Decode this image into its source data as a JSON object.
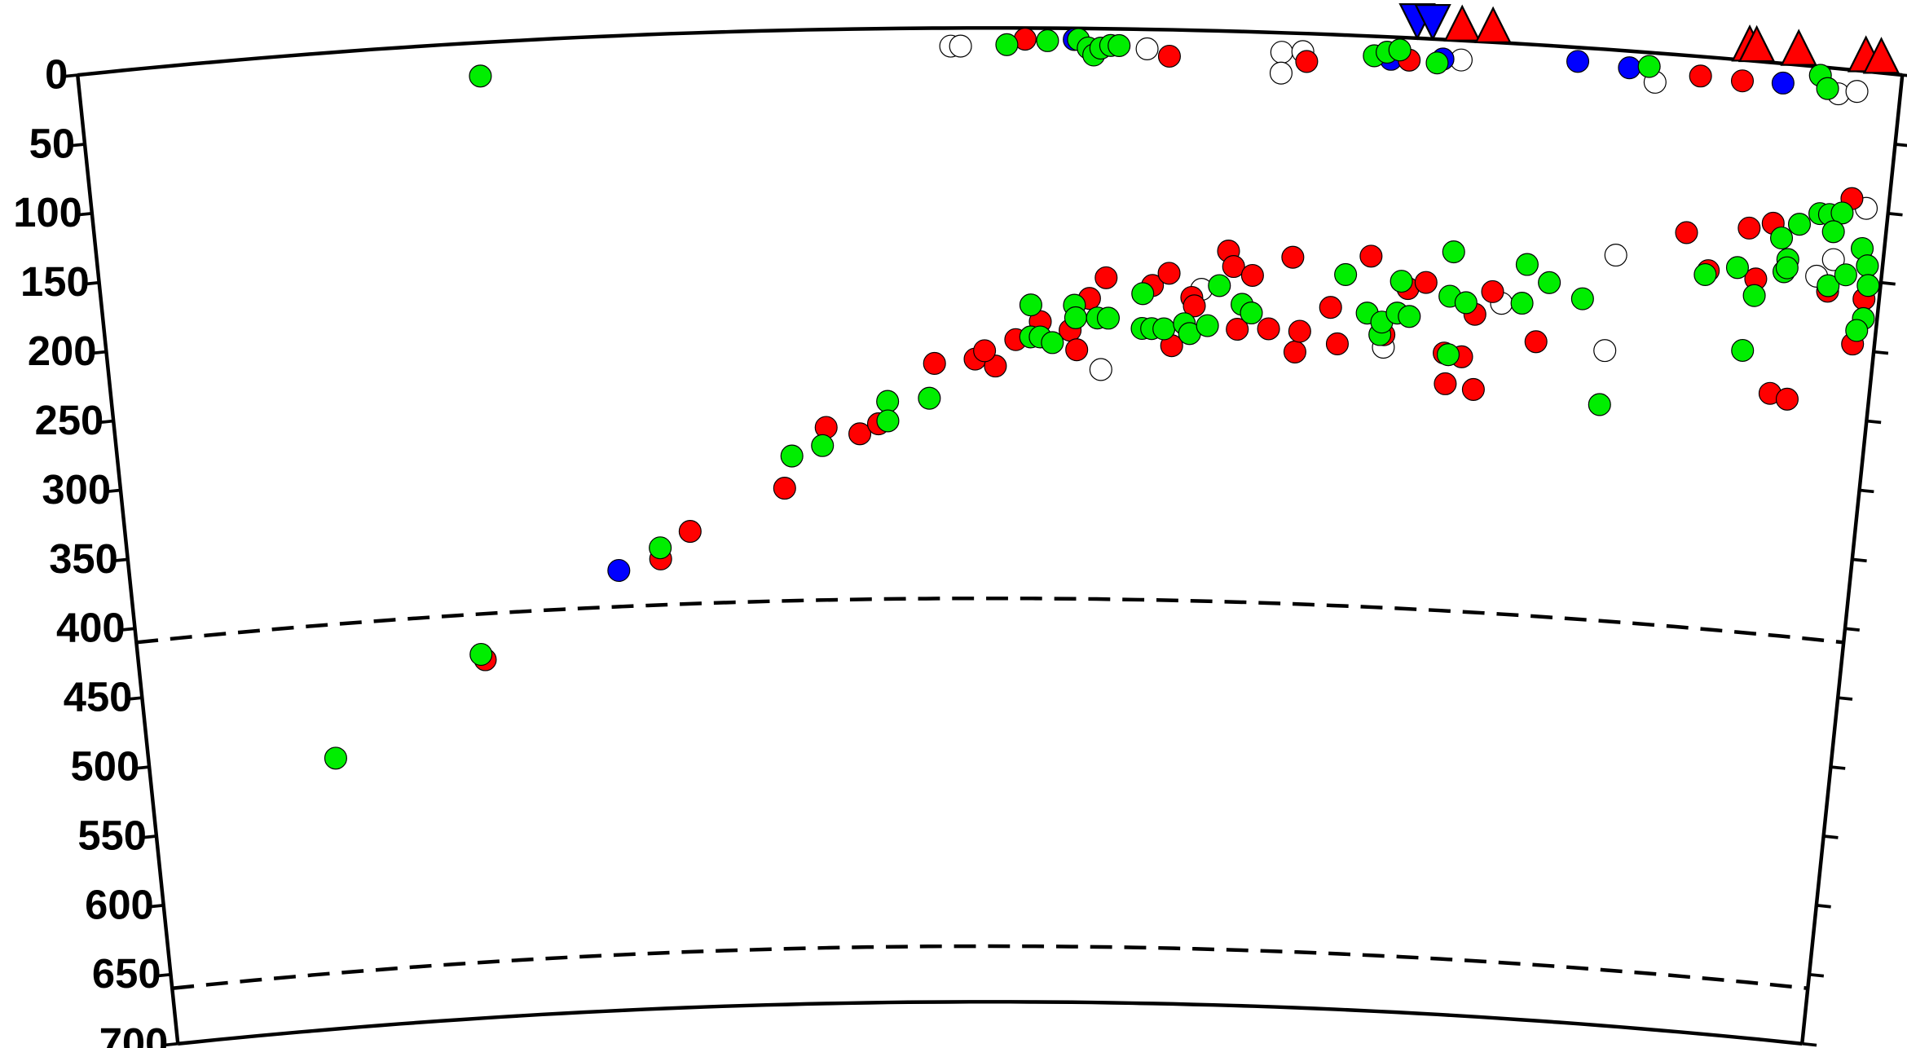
{
  "chart_data": {
    "type": "section",
    "xlim": [
      0,
      1300
    ],
    "ylim": [
      0,
      700
    ],
    "yticks": [
      0,
      50,
      100,
      150,
      200,
      250,
      300,
      350,
      400,
      450,
      500,
      550,
      600,
      650,
      700
    ],
    "dashed_depths": [
      410,
      660
    ],
    "series": [
      {
        "color": "#ffffff",
        "x": [
          622,
          629,
          762,
          858,
          858,
          873,
          986,
          1125,
          1256,
          1269,
          1284,
          1264,
          1253,
          1103,
          1106,
          1025,
          732,
          805,
          940
        ],
        "values": [
          13,
          13,
          14,
          14,
          29,
          13,
          14,
          21,
          18,
          15,
          98,
          137,
          150,
          216,
          147,
          187,
          245,
          186,
          223
        ]
      },
      {
        "color": "#0000ff",
        "x": [
          369,
          1069,
          1106,
          1216,
          710,
          973,
          936
        ],
        "values": [
          384,
          10,
          12,
          14,
          8,
          14,
          16
        ]
      },
      {
        "color": "#ff0000",
        "x": [
          264,
          401,
          424,
          496,
          528,
          553,
          567,
          609,
          639,
          654,
          646,
          669,
          687,
          709,
          714,
          723,
          735,
          769,
          781,
          798,
          800,
          784,
          824,
          828,
          842,
          832,
          855,
          871,
          875,
          878,
          900,
          906,
          928,
          940,
          956,
          969,
          985,
          987,
          998,
          1006,
          1008,
          1018,
          1052,
          1156,
          1174,
          1201,
          1209,
          1218,
          1227,
          1240,
          1262,
          1284,
          1289,
          1273,
          675,
          778,
          876,
          949,
          1157,
          1187
        ],
        "values": [
          443,
          377,
          358,
          329,
          286,
          291,
          284,
          241,
          238,
          243,
          232,
          224,
          211,
          217,
          231,
          194,
          179,
          184,
          175,
          192,
          198,
          227,
          158,
          169,
          175,
          214,
          213,
          161,
          229,
          214,
          196,
          222,
          158,
          214,
          180,
          175,
          225,
          247,
          227,
          196,
          250,
          179,
          213,
          127,
          153,
          120,
          156,
          115,
          237,
          240,
          160,
          196,
          163,
          92,
          8,
          19,
          20,
          16,
          14,
          15
        ]
      },
      {
        "color": "#00ee00",
        "x": [
          286,
          261,
          144,
          401,
          502,
          525,
          574,
          574,
          605,
          680,
          680,
          687,
          696,
          712,
          713,
          729,
          737,
          762,
          762,
          769,
          778,
          793,
          797,
          810,
          818,
          835,
          842,
          910,
          927,
          937,
          938,
          949,
          951,
          958,
          988,
          987,
          988,
          999,
          1042,
          1040,
          1059,
          1084,
          1102,
          1172,
          1195,
          1204,
          1209,
          1225,
          1231,
          1229,
          1237,
          1231,
          1262,
          1251,
          1258,
          1267,
          1274,
          1284,
          1289,
          1291,
          1290,
          1286,
          1262,
          662,
          691,
          713,
          720,
          724,
          729,
          736,
          742,
          924,
          933,
          942,
          969,
          1120,
          1242,
          1248
        ],
        "values": [
          24,
          439,
          506,
          369,
          306,
          299,
          268,
          282,
          266,
          199,
          222,
          222,
          226,
          199,
          208,
          208,
          208,
          190,
          215,
          215,
          215,
          211,
          218,
          212,
          183,
          196,
          202,
          172,
          199,
          214,
          205,
          198,
          175,
          200,
          152,
          184,
          226,
          188,
          158,
          186,
          170,
          180,
          255,
          156,
          149,
          208,
          168,
          125,
          140,
          149,
          114,
          146,
          156,
          105,
          105,
          103,
          147,
          127,
          139,
          153,
          177,
          186,
          117,
          12,
          9,
          8,
          14,
          19,
          14,
          12,
          12,
          14,
          11,
          9,
          17,
          10,
          6,
          15
        ]
      }
    ],
    "surface_markers": [
      {
        "shape": "triangle",
        "color": "#ff0000",
        "x": [
          986,
          1008,
          1191,
          1196,
          1226,
          1274,
          1285
        ]
      },
      {
        "shape": "inverted-triangle",
        "color": "#0000ff",
        "x": [
          954,
          965
        ]
      }
    ]
  }
}
